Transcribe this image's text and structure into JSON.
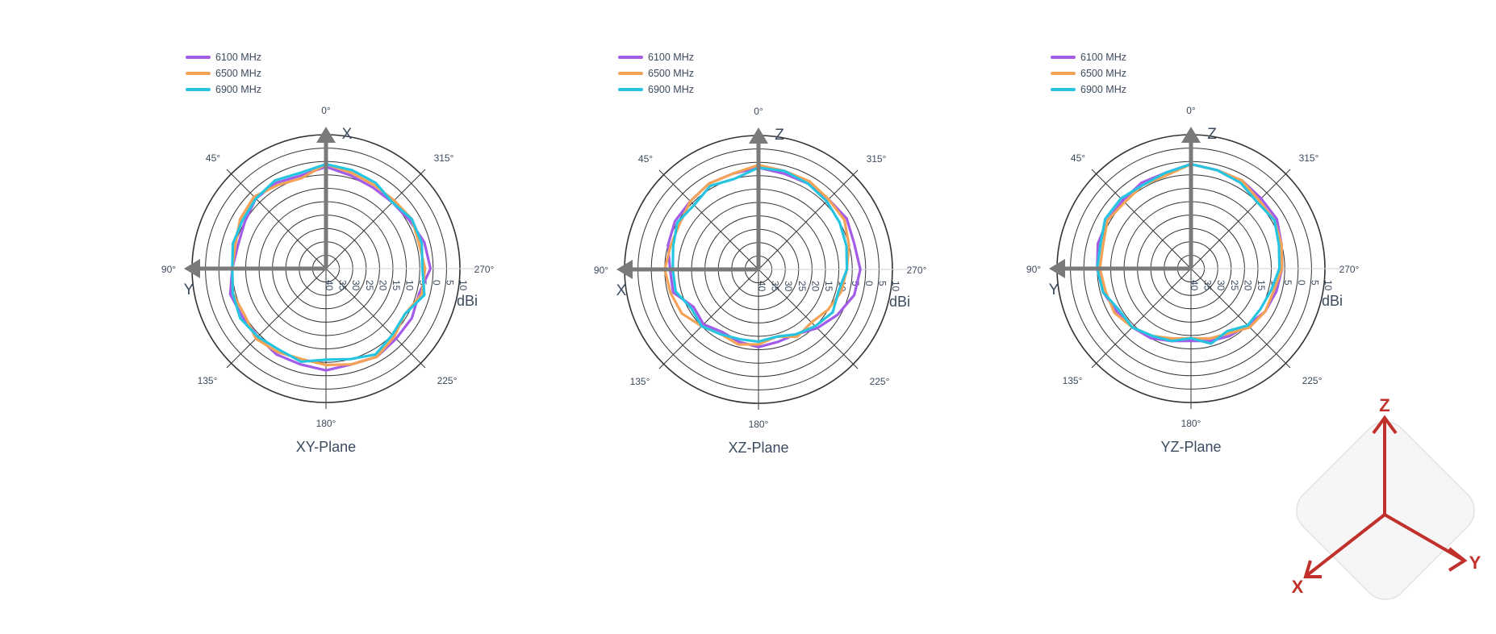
{
  "chart_data": [
    {
      "type": "polar-line",
      "title": "XY-Plane",
      "axis_label_top": "X",
      "axis_label_left": "Y",
      "unit": "dBi",
      "angular_ticks": [
        "0°",
        "45°",
        "90°",
        "135°",
        "180°",
        "225°",
        "270°",
        "315°"
      ],
      "radial_ticks": [
        "10",
        "5",
        "0",
        "5",
        "10",
        "15",
        "20",
        "25",
        "30",
        "35",
        "40"
      ],
      "radial_range": [
        -40,
        10
      ],
      "series": [
        {
          "name": "6100 MHz",
          "angles": [
            0,
            15,
            30,
            45,
            60,
            75,
            90,
            105,
            120,
            135,
            150,
            165,
            180,
            195,
            210,
            225,
            240,
            255,
            270,
            285,
            300,
            315,
            330,
            345
          ],
          "values": [
            -2,
            -4,
            -3,
            -3,
            -5,
            -6,
            -5,
            -3,
            -4,
            -4,
            -3,
            -3,
            -2,
            -3,
            -2,
            -3,
            -3,
            -4,
            -1,
            -2,
            -4,
            -5,
            -5,
            -4
          ]
        },
        {
          "name": "6500 MHz",
          "angles": [
            0,
            15,
            30,
            45,
            60,
            75,
            90,
            105,
            120,
            135,
            150,
            165,
            180,
            195,
            210,
            225,
            240,
            255,
            270,
            285,
            300,
            315,
            330,
            345
          ],
          "values": [
            -1,
            -5,
            -4,
            -2,
            -3,
            -5,
            -5,
            -4,
            -5,
            -3,
            -4,
            -5,
            -4,
            -3,
            -2,
            -4,
            -6,
            -3,
            -3,
            -4,
            -3,
            -4,
            -4,
            -3
          ]
        },
        {
          "name": "6900 MHz",
          "angles": [
            0,
            15,
            30,
            45,
            60,
            75,
            90,
            105,
            120,
            135,
            150,
            165,
            180,
            195,
            210,
            225,
            240,
            255,
            270,
            285,
            300,
            315,
            330,
            345
          ],
          "values": [
            -1,
            -3,
            -2,
            -3,
            -4,
            -4,
            -5,
            -4,
            -3,
            -4,
            -5,
            -4,
            -6,
            -5,
            -3,
            -5,
            -6,
            -2,
            -4,
            -3,
            -3,
            -5,
            -3,
            -2
          ]
        }
      ]
    },
    {
      "type": "polar-line",
      "title": "XZ-Plane",
      "axis_label_top": "Z",
      "axis_label_left": "X",
      "unit": "dBi",
      "angular_ticks": [
        "0°",
        "45°",
        "90°",
        "135°",
        "180°",
        "225°",
        "270°",
        "315°"
      ],
      "radial_ticks": [
        "10",
        "5",
        "0",
        "5",
        "10",
        "15",
        "20",
        "25",
        "30",
        "35",
        "40"
      ],
      "radial_range": [
        -40,
        10
      ],
      "series": [
        {
          "name": "6100 MHz",
          "angles": [
            0,
            15,
            30,
            45,
            60,
            75,
            90,
            105,
            120,
            135,
            150,
            165,
            180,
            195,
            210,
            225,
            240,
            255,
            270,
            285,
            300,
            315,
            330,
            345
          ],
          "values": [
            -2,
            -3,
            -3,
            -4,
            -4,
            -5,
            -7,
            -7,
            -12,
            -11,
            -13,
            -12,
            -11,
            -12,
            -12,
            -9,
            -6,
            -3,
            -2,
            -3,
            -2,
            -3,
            -3,
            -3
          ]
        },
        {
          "name": "6500 MHz",
          "angles": [
            0,
            15,
            30,
            45,
            60,
            75,
            90,
            105,
            120,
            135,
            150,
            165,
            180,
            195,
            210,
            225,
            240,
            255,
            270,
            285,
            300,
            315,
            330,
            345
          ],
          "values": [
            -1,
            -3,
            -3,
            -4,
            -6,
            -6,
            -5,
            -6,
            -7,
            -10,
            -12,
            -11,
            -12,
            -14,
            -11,
            -12,
            -10,
            -8,
            -7,
            -5,
            -3,
            -3,
            -2,
            -2
          ]
        },
        {
          "name": "6900 MHz",
          "angles": [
            0,
            15,
            30,
            45,
            60,
            75,
            90,
            105,
            120,
            135,
            150,
            165,
            180,
            195,
            210,
            225,
            240,
            255,
            270,
            285,
            300,
            315,
            330,
            345
          ],
          "values": [
            -2,
            -5,
            -4,
            -6,
            -5,
            -7,
            -8,
            -8,
            -11,
            -10,
            -12,
            -13,
            -13,
            -14,
            -12,
            -10,
            -8,
            -9,
            -7,
            -6,
            -5,
            -4,
            -3,
            -2
          ]
        }
      ]
    },
    {
      "type": "polar-line",
      "title": "YZ-Plane",
      "axis_label_top": "Z",
      "axis_label_left": "Y",
      "unit": "dBi",
      "angular_ticks": [
        "0°",
        "45°",
        "90°",
        "135°",
        "180°",
        "225°",
        "270°",
        "315°"
      ],
      "radial_ticks": [
        "10",
        "5",
        "0",
        "5",
        "10",
        "15",
        "20",
        "25",
        "30",
        "35",
        "40"
      ],
      "radial_range": [
        -40,
        10
      ],
      "series": [
        {
          "name": "6100 MHz",
          "angles": [
            0,
            15,
            30,
            45,
            60,
            75,
            90,
            105,
            120,
            135,
            150,
            165,
            180,
            195,
            210,
            225,
            240,
            255,
            270,
            285,
            300,
            315,
            330,
            345
          ],
          "values": [
            -1,
            -3,
            -3,
            -4,
            -4,
            -4,
            -5,
            -6,
            -8,
            -9,
            -10,
            -12,
            -13,
            -12,
            -11,
            -10,
            -8,
            -7,
            -6,
            -5,
            -3,
            -3,
            -2,
            -2
          ]
        },
        {
          "name": "6500 MHz",
          "angles": [
            0,
            15,
            30,
            45,
            60,
            75,
            90,
            105,
            120,
            135,
            150,
            165,
            180,
            195,
            210,
            225,
            240,
            255,
            270,
            285,
            300,
            315,
            330,
            345
          ],
          "values": [
            -1,
            -4,
            -4,
            -5,
            -4,
            -6,
            -6,
            -7,
            -7,
            -9,
            -11,
            -13,
            -14,
            -13,
            -12,
            -9,
            -8,
            -8,
            -6,
            -5,
            -4,
            -4,
            -2,
            -2
          ]
        },
        {
          "name": "6900 MHz",
          "angles": [
            0,
            15,
            30,
            45,
            60,
            75,
            90,
            105,
            120,
            135,
            150,
            165,
            180,
            195,
            210,
            225,
            240,
            255,
            270,
            285,
            300,
            315,
            330,
            345
          ],
          "values": [
            -1,
            -3,
            -4,
            -3,
            -3,
            -5,
            -5,
            -6,
            -9,
            -9,
            -11,
            -12,
            -14,
            -11,
            -13,
            -10,
            -10,
            -9,
            -7,
            -6,
            -4,
            -5,
            -3,
            -2
          ]
        }
      ]
    }
  ],
  "legend": [
    {
      "name": "6100 MHz",
      "color": "#a35ce8"
    },
    {
      "name": "6500 MHz",
      "color": "#f4a356"
    },
    {
      "name": "6900 MHz",
      "color": "#25c4e0"
    }
  ],
  "coord_axes": {
    "z": "Z",
    "x": "X",
    "y": "Y",
    "color": "#c0312b"
  }
}
